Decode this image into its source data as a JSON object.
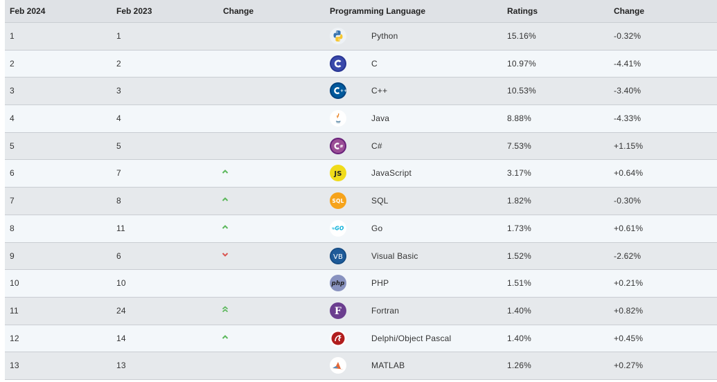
{
  "columns": {
    "rank": "Feb 2024",
    "prev": "Feb 2023",
    "change_arrow": "Change",
    "language": "Programming Language",
    "ratings": "Ratings",
    "change": "Change"
  },
  "colors": {
    "up": "#5cb85c",
    "down": "#d9534f",
    "header_bg": "#dfe2e6",
    "row_odd": "#e6e9ec",
    "row_even": "#f3f7fa"
  },
  "rows": [
    {
      "rank": "1",
      "prev": "1",
      "trend": "none",
      "icon": "python-icon",
      "language": "Python",
      "rating": "15.16%",
      "change": "-0.32%"
    },
    {
      "rank": "2",
      "prev": "2",
      "trend": "none",
      "icon": "c-icon",
      "language": "C",
      "rating": "10.97%",
      "change": "-4.41%"
    },
    {
      "rank": "3",
      "prev": "3",
      "trend": "none",
      "icon": "cpp-icon",
      "language": "C++",
      "rating": "10.53%",
      "change": "-3.40%"
    },
    {
      "rank": "4",
      "prev": "4",
      "trend": "none",
      "icon": "java-icon",
      "language": "Java",
      "rating": "8.88%",
      "change": "-4.33%"
    },
    {
      "rank": "5",
      "prev": "5",
      "trend": "none",
      "icon": "csharp-icon",
      "language": "C#",
      "rating": "7.53%",
      "change": "+1.15%"
    },
    {
      "rank": "6",
      "prev": "7",
      "trend": "up",
      "icon": "javascript-icon",
      "language": "JavaScript",
      "rating": "3.17%",
      "change": "+0.64%"
    },
    {
      "rank": "7",
      "prev": "8",
      "trend": "up",
      "icon": "sql-icon",
      "language": "SQL",
      "rating": "1.82%",
      "change": "-0.30%"
    },
    {
      "rank": "8",
      "prev": "11",
      "trend": "up",
      "icon": "go-icon",
      "language": "Go",
      "rating": "1.73%",
      "change": "+0.61%"
    },
    {
      "rank": "9",
      "prev": "6",
      "trend": "down",
      "icon": "visual-basic-icon",
      "language": "Visual Basic",
      "rating": "1.52%",
      "change": "-2.62%"
    },
    {
      "rank": "10",
      "prev": "10",
      "trend": "none",
      "icon": "php-icon",
      "language": "PHP",
      "rating": "1.51%",
      "change": "+0.21%"
    },
    {
      "rank": "11",
      "prev": "24",
      "trend": "double-up",
      "icon": "fortran-icon",
      "language": "Fortran",
      "rating": "1.40%",
      "change": "+0.82%"
    },
    {
      "rank": "12",
      "prev": "14",
      "trend": "up",
      "icon": "delphi-icon",
      "language": "Delphi/Object Pascal",
      "rating": "1.40%",
      "change": "+0.45%"
    },
    {
      "rank": "13",
      "prev": "13",
      "trend": "none",
      "icon": "matlab-icon",
      "language": "MATLAB",
      "rating": "1.26%",
      "change": "+0.27%"
    }
  ],
  "icon_text": {
    "javascript": "JS",
    "sql": "SQL",
    "go": "GO",
    "visual_basic": "VB",
    "php": "php",
    "fortran": "F"
  }
}
